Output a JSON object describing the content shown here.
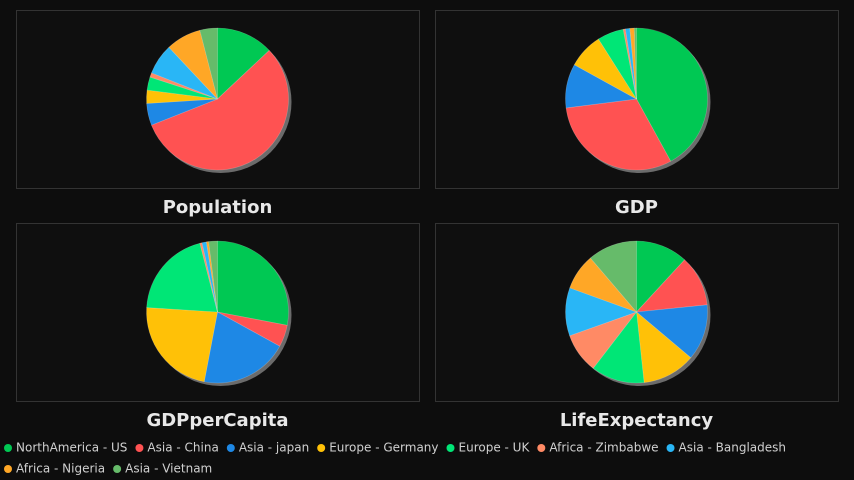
{
  "chart_data": [
    {
      "type": "pie",
      "title": "Population",
      "categories": [
        "NorthAmerica - US",
        "Asia - China",
        "Asia - japan",
        "Europe - Germany",
        "Europe - UK",
        "Africa - Zimbabwe",
        "Asia - Bangladesh",
        "Africa - Nigeria",
        "Asia - Vietnam"
      ],
      "colors": [
        "#00c853",
        "#ff5252",
        "#1e88e5",
        "#ffc107",
        "#00e676",
        "#ff8a65",
        "#29b6f6",
        "#ffa726",
        "#66bb6a"
      ],
      "values": [
        13,
        56,
        5,
        3,
        3,
        1,
        7,
        8,
        4
      ]
    },
    {
      "type": "pie",
      "title": "GDP",
      "categories": [
        "NorthAmerica - US",
        "Asia - China",
        "Asia - japan",
        "Europe - Germany",
        "Europe - UK",
        "Africa - Zimbabwe",
        "Asia - Bangladesh",
        "Africa - Nigeria",
        "Asia - Vietnam"
      ],
      "colors": [
        "#00c853",
        "#ff5252",
        "#1e88e5",
        "#ffc107",
        "#00e676",
        "#ff8a65",
        "#29b6f6",
        "#ffa726",
        "#66bb6a"
      ],
      "values": [
        42,
        31,
        10,
        8,
        6,
        0.5,
        1,
        1,
        0.5
      ]
    },
    {
      "type": "pie",
      "title": "GDPperCapita",
      "categories": [
        "NorthAmerica - US",
        "Asia - China",
        "Asia - japan",
        "Europe - Germany",
        "Europe - UK",
        "Africa - Zimbabwe",
        "Asia - Bangladesh",
        "Africa - Nigeria",
        "Asia - Vietnam"
      ],
      "colors": [
        "#00c853",
        "#ff5252",
        "#1e88e5",
        "#ffc107",
        "#00e676",
        "#ff8a65",
        "#29b6f6",
        "#ffa726",
        "#66bb6a"
      ],
      "values": [
        28,
        5,
        20,
        23,
        20,
        0.5,
        1,
        0.5,
        2
      ]
    },
    {
      "type": "pie",
      "title": "LifeExpectancy",
      "categories": [
        "NorthAmerica - US",
        "Asia - China",
        "Asia - japan",
        "Europe - Germany",
        "Europe - UK",
        "Africa - Zimbabwe",
        "Asia - Bangladesh",
        "Africa - Nigeria",
        "Asia - Vietnam"
      ],
      "colors": [
        "#00c853",
        "#ff5252",
        "#1e88e5",
        "#ffc107",
        "#00e676",
        "#ff8a65",
        "#29b6f6",
        "#ffa726",
        "#66bb6a"
      ],
      "values": [
        11.8,
        11.5,
        12.7,
        12.1,
        12.1,
        9.1,
        10.9,
        8.2,
        11.2
      ]
    }
  ]
}
